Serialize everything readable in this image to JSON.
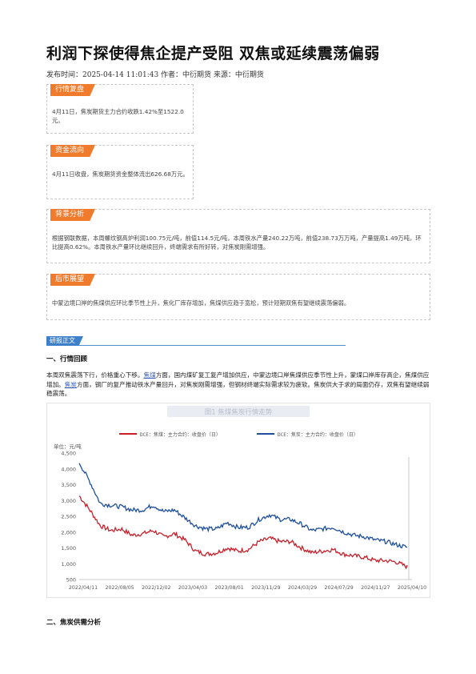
{
  "article": {
    "title": "利润下探使得焦企提产受阻 双焦或延续震荡偏弱",
    "meta": "发布时间：2025-04-14 11:01:43 作者：中衍期货 来源：中衍期货"
  },
  "summary": {
    "market": {
      "tag": "行情复盘",
      "text": "4月11日，焦炭期货主力合约收跌1.42%至1522.0元。"
    },
    "funds": {
      "tag": "资金流向",
      "text": "4月11日收盘，焦炭期货资金整体流出626.68万元。"
    },
    "background": {
      "tag": "背景分析",
      "text": "根据钢联数据，本周螺纹钢高炉利润100.75元/吨，前值114.5元/吨，本周铁水产量240.22万吨，前值238.73万万吨，产量提高1.49万吨，环比提高0.62%。本周铁水产量环比继续回升，终端需求有所好转，对焦炭刚需增强。"
    },
    "outlook": {
      "tag": "后市展望",
      "text": "中蒙边境口岸的焦煤供应环比季节性上升，焦化厂库存增加，焦煤供应趋于宽松，预计短期双焦有望继续震荡偏弱。"
    }
  },
  "body": {
    "section_tag": "研报正文",
    "h1": "一、行情回顾",
    "para_1": "本周双焦震荡下行，价格重心下移。",
    "link_1": "焦煤",
    "para_2": "方面，国内煤矿复工复产增加供应，中蒙边境口岸焦煤供应季节性上升，蒙煤口岸库存高企，焦煤供应增加。",
    "link_2": "焦炭",
    "para_3": "方面，钢厂的复产推动铁水产量回升，对焦炭刚需增强，但钢材终端实际需求较为疲软。焦炭供大于求的局面仍存，双焦有望继续弱稳震荡。",
    "h2": "二、焦炭供需分析"
  },
  "colors": {
    "coking_coal": "#c8202a",
    "coke": "#1f4f9a",
    "tag": "#f07b2c",
    "section": "#3d7fc8"
  },
  "chart_data": {
    "type": "line",
    "title": "图1 焦煤焦炭行情走势",
    "unit_label": "单位：元/吨",
    "ylim": [
      500,
      4500
    ],
    "y_ticks": [
      "4,500",
      "4,000",
      "3,500",
      "3,000",
      "2,500",
      "2,000",
      "1,500",
      "1,000",
      "500"
    ],
    "x_ticks": [
      "2022/04/11",
      "2022/08/05",
      "2022/12/02",
      "2023/04/03",
      "2023/08/01",
      "2023/11/29",
      "2024/03/29",
      "2024/07/29",
      "2024/11/27",
      "2025/04/10"
    ],
    "series": [
      {
        "name": "DCE：焦煤：主力合约：收盘价（日）",
        "color": "#c8202a",
        "values": [
          3150,
          2700,
          2200,
          2050,
          2100,
          1900,
          1950,
          2050,
          1850,
          1950,
          1750,
          1400,
          1300,
          1350,
          1500,
          1400,
          1450,
          1700,
          1800,
          1700,
          1700,
          1500,
          1350,
          1400,
          1450,
          1300,
          1250,
          1200,
          1100,
          1100,
          1050,
          900
        ]
      },
      {
        "name": "DCE：焦炭：主力合约：收盘价（日）",
        "color": "#1f4f9a",
        "values": [
          4200,
          3600,
          2900,
          2850,
          2800,
          2700,
          2700,
          2850,
          2650,
          2700,
          2450,
          2200,
          2100,
          2100,
          2300,
          2150,
          2150,
          2400,
          2550,
          2400,
          2400,
          2250,
          2050,
          2100,
          2150,
          2000,
          1900,
          1850,
          1750,
          1700,
          1600,
          1520
        ]
      }
    ]
  }
}
